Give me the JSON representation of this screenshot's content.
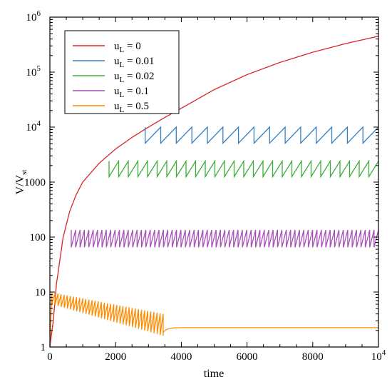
{
  "chart_data": {
    "type": "line",
    "xlabel": "time",
    "ylabel_main": "V/V",
    "ylabel_sub": "st",
    "xlim": [
      0,
      10000
    ],
    "ylim": [
      1,
      1000000
    ],
    "yscale": "log",
    "grid": false,
    "legend_position": "top-left",
    "x_ticks": [
      {
        "value": 0,
        "label": "0",
        "exp": ""
      },
      {
        "value": 2000,
        "label": "2000",
        "exp": ""
      },
      {
        "value": 4000,
        "label": "4000",
        "exp": ""
      },
      {
        "value": 6000,
        "label": "6000",
        "exp": ""
      },
      {
        "value": 8000,
        "label": "8000",
        "exp": ""
      },
      {
        "value": 10000,
        "label": "10",
        "exp": "4"
      }
    ],
    "y_ticks": [
      {
        "value": 1,
        "label": "1",
        "exp": ""
      },
      {
        "value": 10,
        "label": "10",
        "exp": ""
      },
      {
        "value": 100,
        "label": "100",
        "exp": ""
      },
      {
        "value": 1000,
        "label": "1000",
        "exp": ""
      },
      {
        "value": 10000,
        "label": "10",
        "exp": "4"
      },
      {
        "value": 100000,
        "label": "10",
        "exp": "5"
      },
      {
        "value": 1000000,
        "label": "10",
        "exp": "6"
      }
    ],
    "series": [
      {
        "name": "uL = 0",
        "label_main": "u",
        "label_sub": "L",
        "label_rest": " = 0",
        "color": "#d62728",
        "kind": "growth",
        "x": [
          0,
          100,
          200,
          400,
          600,
          800,
          1000,
          1500,
          2000,
          2500,
          3000,
          3500,
          4000,
          5000,
          6000,
          7000,
          8000,
          9000,
          10000
        ],
        "y": [
          1,
          2.9,
          14,
          97,
          290,
          590,
          1000,
          2200,
          4000,
          6500,
          10000,
          15000,
          22000,
          48000,
          90000,
          150000,
          230000,
          330000,
          450000
        ]
      },
      {
        "name": "uL = 0.01",
        "label_main": "u",
        "label_sub": "L",
        "label_rest": " = 0.01",
        "color": "#3a80c1",
        "kind": "sawtooth",
        "start": 2900,
        "end": 10000,
        "low": 5100,
        "high": 10000,
        "cycles": 15
      },
      {
        "name": "uL = 0.02",
        "label_main": "u",
        "label_sub": "L",
        "label_rest": " = 0.02",
        "color": "#3cad3a",
        "kind": "sawtooth",
        "start": 1800,
        "end": 10000,
        "low": 1250,
        "high": 2400,
        "cycles": 28
      },
      {
        "name": "uL = 0.1",
        "label_main": "u",
        "label_sub": "L",
        "label_rest": " = 0.1",
        "color": "#a64fb8",
        "kind": "sawtooth",
        "start": 650,
        "end": 10000,
        "low": 65,
        "high": 135,
        "cycles": 70
      },
      {
        "name": "uL = 0.5",
        "label_main": "u",
        "label_sub": "L",
        "label_rest": " = 0.5",
        "color": "#ff8c00",
        "kind": "decay_then_flat",
        "start": 60,
        "osc_end": 3450,
        "cycles": 36,
        "high_start": 9.8,
        "high_end": 4.0,
        "low_start": 6.0,
        "low_end": 1.6,
        "flat": 2.25
      }
    ]
  }
}
